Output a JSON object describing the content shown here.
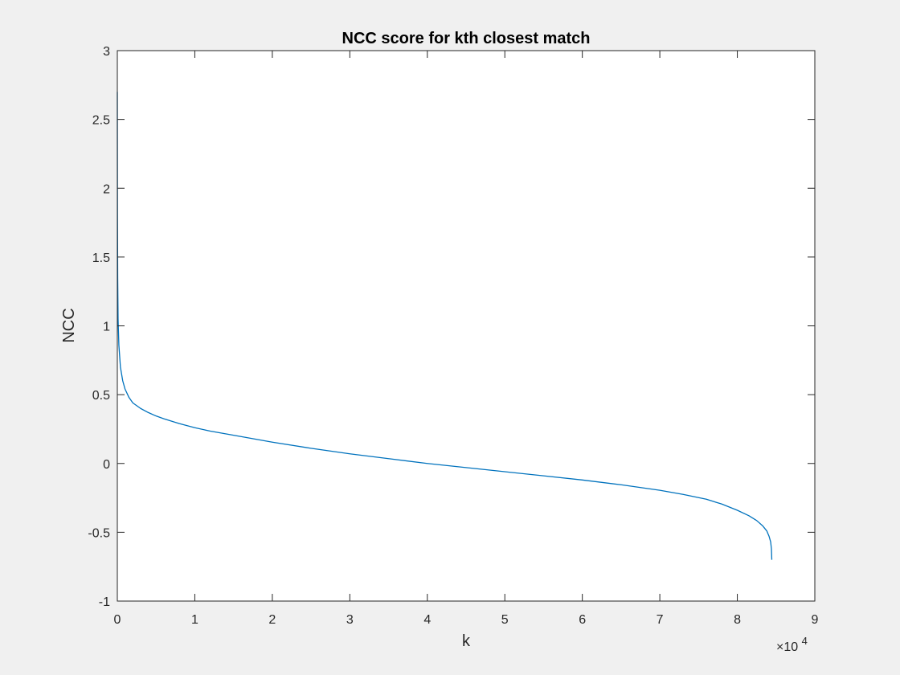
{
  "chart_data": {
    "type": "line",
    "title": "NCC score for kth closest match",
    "xlabel": "k",
    "ylabel": "NCC",
    "xlim": [
      0,
      90000
    ],
    "ylim": [
      -1,
      3
    ],
    "x_tick_labels": [
      "0",
      "1",
      "2",
      "3",
      "4",
      "5",
      "6",
      "7",
      "8",
      "9"
    ],
    "x_tick_values": [
      0,
      10000,
      20000,
      30000,
      40000,
      50000,
      60000,
      70000,
      80000,
      90000
    ],
    "y_tick_labels": [
      "-1",
      "-0.5",
      "0",
      "0.5",
      "1",
      "1.5",
      "2",
      "2.5",
      "3"
    ],
    "y_tick_values": [
      -1,
      -0.5,
      0,
      0.5,
      1,
      1.5,
      2,
      2.5,
      3
    ],
    "x_exponent_label": {
      "times": "×10",
      "exp": "4"
    },
    "grid": false,
    "box": true,
    "series": [
      {
        "color": "#0072BD",
        "x": [
          1,
          20,
          50,
          100,
          200,
          400,
          700,
          1000,
          1500,
          2000,
          3000,
          4000,
          5000,
          6000,
          8000,
          10000,
          12000,
          15000,
          20000,
          25000,
          30000,
          35000,
          40000,
          45000,
          50000,
          55000,
          60000,
          65000,
          70000,
          73000,
          76000,
          78000,
          80000,
          81500,
          82500,
          83300,
          83800,
          84100,
          84300,
          84400,
          84450
        ],
        "y": [
          2.7,
          1.8,
          1.35,
          1.05,
          0.86,
          0.7,
          0.6,
          0.54,
          0.48,
          0.44,
          0.4,
          0.37,
          0.345,
          0.325,
          0.29,
          0.26,
          0.235,
          0.205,
          0.155,
          0.11,
          0.07,
          0.035,
          0.0,
          -0.03,
          -0.06,
          -0.09,
          -0.12,
          -0.155,
          -0.195,
          -0.225,
          -0.26,
          -0.295,
          -0.34,
          -0.38,
          -0.415,
          -0.455,
          -0.49,
          -0.53,
          -0.57,
          -0.62,
          -0.7
        ]
      }
    ]
  }
}
